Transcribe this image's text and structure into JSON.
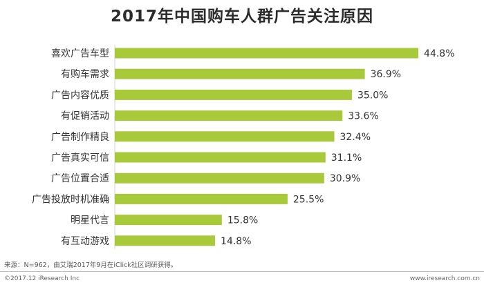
{
  "chart_data": {
    "type": "bar",
    "orientation": "horizontal",
    "title": "2017年中国购车人群广告关注原因",
    "categories": [
      "喜欢广告车型",
      "有购车需求",
      "广告内容优质",
      "有促销活动",
      "广告制作精良",
      "广告真实可信",
      "广告位置合适",
      "广告投放时机准确",
      "明星代言",
      "有互动游戏"
    ],
    "values": [
      44.8,
      36.9,
      35.0,
      33.6,
      32.4,
      31.1,
      30.9,
      25.5,
      15.8,
      14.8
    ],
    "value_labels": [
      "44.8%",
      "36.9%",
      "35.0%",
      "33.6%",
      "32.4%",
      "31.1%",
      "30.9%",
      "25.5%",
      "15.8%",
      "14.8%"
    ],
    "xlim": [
      0,
      45
    ],
    "grid": false,
    "bar_color": "#a7c93a"
  },
  "footer": {
    "source": "来源：N=962，由艾瑞2017年9月在iClick社区调研获得。",
    "copyright": "©2017.12 iResearch Inc",
    "site": "www.iresearch.com.cn"
  }
}
